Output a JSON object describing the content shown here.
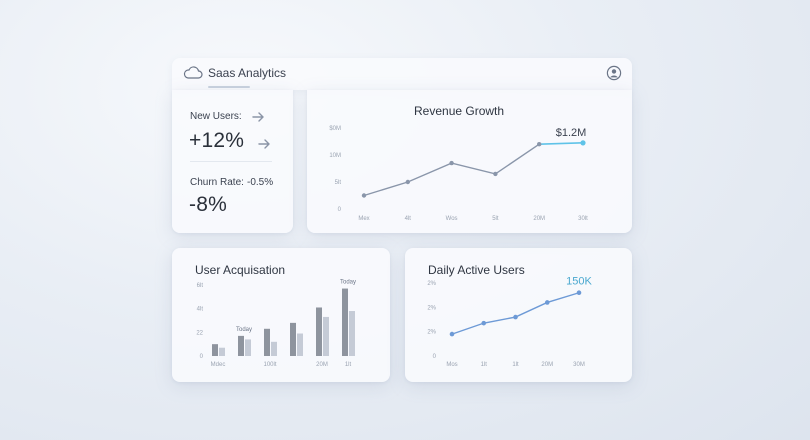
{
  "header": {
    "app_title": "Saas Analytics",
    "logo_icon": "cloud-icon",
    "user_icon": "user-circle-icon"
  },
  "stats": {
    "new_users_label": "New Users:",
    "new_users_value": "+12%",
    "churn_label": "Churn Rate:",
    "churn_delta": "-0.5%",
    "churn_value": "-8%"
  },
  "colors": {
    "line": "#8a96aa",
    "accent": "#5fc3e8",
    "bar_dark": "#8e949e",
    "bar_light": "#c5cbd6",
    "dau_line": "#6d9ad6"
  },
  "chart_data": [
    {
      "type": "line",
      "title": "Revenue Growth",
      "x": [
        "Mex",
        "4lt",
        "Wos",
        "5lt",
        "20M",
        "30lt"
      ],
      "y_ticks": [
        "0",
        "5lt",
        "10M",
        "$0M"
      ],
      "values": [
        0.5,
        1.0,
        1.7,
        1.3,
        2.4,
        2.45
      ],
      "ylim": [
        0,
        3
      ],
      "annotation": "$1.2M"
    },
    {
      "type": "bar",
      "title": "User Acquisation",
      "categories": [
        "Mdec",
        "",
        "100lt",
        "",
        "20M",
        "1lt"
      ],
      "y_ticks": [
        "0",
        "22",
        "4lt",
        "6lt"
      ],
      "series": [
        {
          "values": [
            10,
            17,
            23,
            28,
            41,
            57
          ]
        },
        {
          "values": [
            7,
            14,
            12,
            19,
            33,
            38
          ]
        }
      ],
      "ylim": [
        0,
        60
      ],
      "annotations": [
        {
          "text": "Today",
          "index": 1
        },
        {
          "text": "Today",
          "index": 5
        }
      ]
    },
    {
      "type": "line",
      "title": "Daily Active Users",
      "x": [
        "Mos",
        "1lt",
        "1lt",
        "20M",
        "30M"
      ],
      "y_ticks": [
        "0",
        "2%",
        "2%",
        "2%"
      ],
      "values": [
        0.9,
        1.35,
        1.6,
        2.2,
        2.6
      ],
      "ylim": [
        0,
        3
      ],
      "annotation": "150K"
    }
  ]
}
